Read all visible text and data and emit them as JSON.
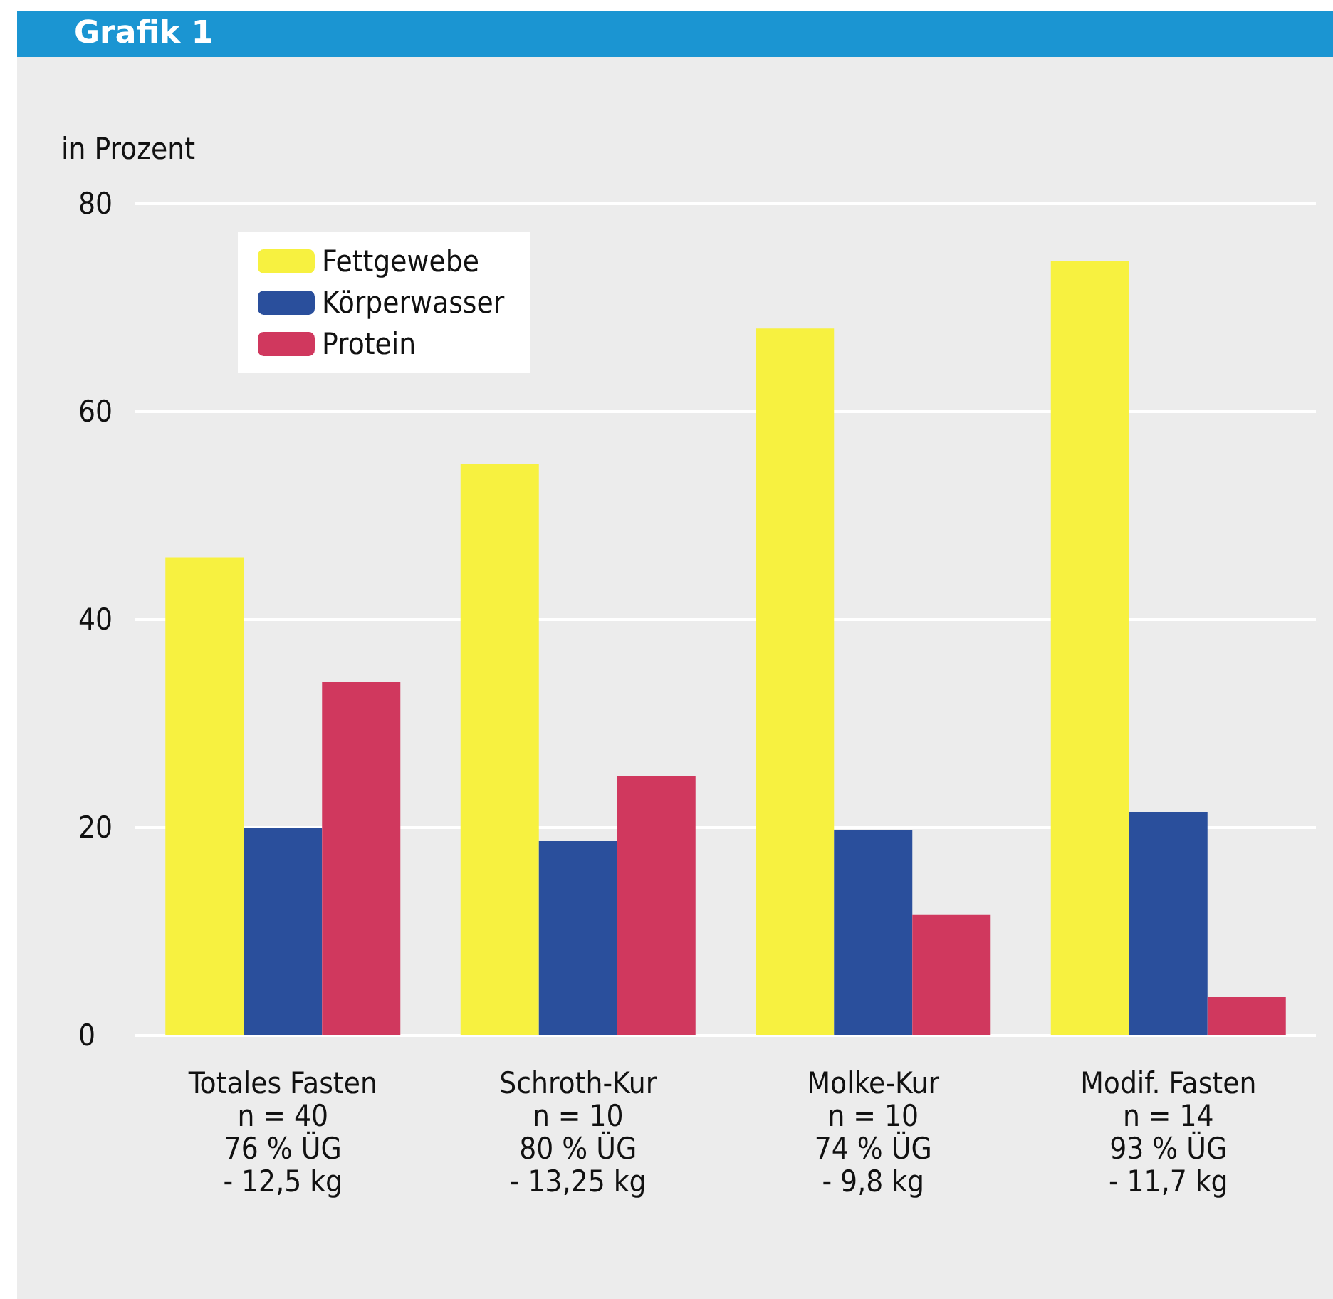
{
  "chart_data": {
    "type": "bar",
    "title": "Grafik 1",
    "ylabel": "in Prozent",
    "categories": [
      "Totales Fasten\nn = 40\n76 % ÜG\n- 12,5 kg",
      "Schroth-Kur\nn = 10\n80 % ÜG\n- 13,25 kg",
      "Molke-Kur\nn = 10\n74 % ÜG\n- 9,8 kg",
      "Modif. Fasten\nn = 14\n93 % ÜG\n- 11,7 kg"
    ],
    "series": [
      {
        "name": "Fettgewebe",
        "color": "#f7f140",
        "values": [
          46,
          55,
          68,
          74.5
        ]
      },
      {
        "name": "Körperwasser",
        "color": "#2a4f9c",
        "values": [
          20,
          18.7,
          19.8,
          21.5
        ]
      },
      {
        "name": "Protein",
        "color": "#d0385e",
        "values": [
          34,
          25,
          11.6,
          3.7
        ]
      }
    ],
    "ylim": [
      0,
      80
    ],
    "yticks": [
      0,
      20,
      40,
      60,
      80
    ],
    "grid": "y",
    "legend": "top left"
  }
}
